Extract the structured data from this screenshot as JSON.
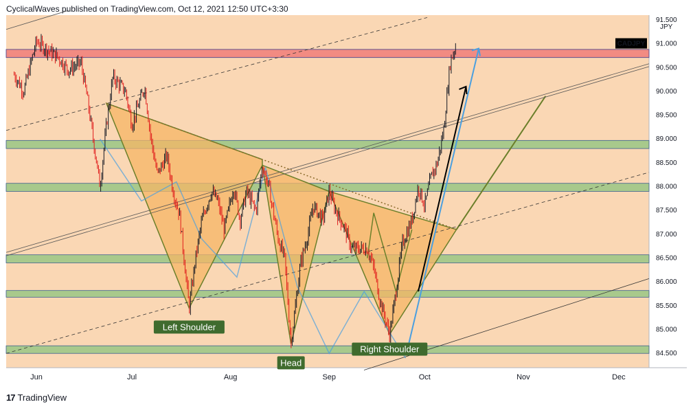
{
  "header": {
    "attribution": "CyclicalWaves published on TradingView.com, Oct 12, 2021 12:50 UTC+3:30"
  },
  "footer": {
    "brand": "TradingView",
    "logo": "17"
  },
  "colors": {
    "background": "#fad7b4",
    "price_up": "#131722",
    "price_down": "#e01b1b",
    "resistance_zone": "#f28b82",
    "support_zone": "#a8c98c",
    "pattern_fill": "#f5b565",
    "pattern_line": "#6b7f2a",
    "projection_blue": "#4a9fe0",
    "symbol_badge": "#000000"
  },
  "chart_data": {
    "type": "candlestick",
    "symbol": "CADJPY",
    "currency": "JPY",
    "y_axis": {
      "labels": [
        "91.500",
        "91.000",
        "90.500",
        "90.000",
        "89.500",
        "89.000",
        "88.500",
        "88.000",
        "87.500",
        "87.000",
        "86.500",
        "86.000",
        "85.500",
        "85.000",
        "84.500"
      ],
      "ylim": [
        84.2,
        91.6
      ]
    },
    "x_axis": {
      "labels": [
        "Jun",
        "Jul",
        "Aug",
        "Sep",
        "Oct",
        "Nov",
        "Dec"
      ]
    },
    "last_price": 91.0,
    "horizontal_zones": [
      {
        "kind": "resistance",
        "from": 90.71,
        "to": 90.88
      },
      {
        "kind": "support",
        "from": 88.8,
        "to": 88.97
      },
      {
        "kind": "support",
        "from": 87.9,
        "to": 88.07
      },
      {
        "kind": "support",
        "from": 86.4,
        "to": 86.57
      },
      {
        "kind": "support",
        "from": 85.68,
        "to": 85.82
      },
      {
        "kind": "support",
        "from": 84.5,
        "to": 84.66
      }
    ],
    "price_path": [
      [
        "May 25",
        90.35
      ],
      [
        "May 28",
        90.0
      ],
      [
        "Jun 1",
        91.05
      ],
      [
        "Jun 4",
        90.9
      ],
      [
        "Jun 8",
        90.7
      ],
      [
        "Jun 11",
        90.45
      ],
      [
        "Jun 15",
        90.6
      ],
      [
        "Jun 17",
        89.85
      ],
      [
        "Jun 21",
        88.0
      ],
      [
        "Jun 23",
        89.3
      ],
      [
        "Jun 25",
        90.3
      ],
      [
        "Jun 29",
        90.0
      ],
      [
        "Jul 1",
        89.3
      ],
      [
        "Jul 5",
        90.1
      ],
      [
        "Jul 7",
        89.0
      ],
      [
        "Jul 9",
        88.25
      ],
      [
        "Jul 12",
        88.65
      ],
      [
        "Jul 14",
        87.9
      ],
      [
        "Jul 16",
        87.4
      ],
      [
        "Jul 19",
        85.45
      ],
      [
        "Jul 21",
        86.5
      ],
      [
        "Jul 23",
        87.3
      ],
      [
        "Jul 26",
        87.9
      ],
      [
        "Jul 28",
        87.7
      ],
      [
        "Jul 30",
        87.1
      ],
      [
        "Aug 2",
        88.0
      ],
      [
        "Aug 4",
        87.3
      ],
      [
        "Aug 6",
        87.9
      ],
      [
        "Aug 9",
        87.5
      ],
      [
        "Aug 11",
        88.45
      ],
      [
        "Aug 13",
        88.0
      ],
      [
        "Aug 16",
        86.9
      ],
      [
        "Aug 18",
        86.5
      ],
      [
        "Aug 20",
        84.7
      ],
      [
        "Aug 23",
        86.4
      ],
      [
        "Aug 25",
        86.9
      ],
      [
        "Aug 27",
        87.6
      ],
      [
        "Aug 30",
        87.3
      ],
      [
        "Sep 1",
        87.9
      ],
      [
        "Sep 3",
        87.5
      ],
      [
        "Sep 6",
        87.1
      ],
      [
        "Sep 8",
        86.7
      ],
      [
        "Sep 10",
        86.7
      ],
      [
        "Sep 13",
        86.7
      ],
      [
        "Sep 15",
        86.3
      ],
      [
        "Sep 17",
        85.6
      ],
      [
        "Sep 20",
        84.9
      ],
      [
        "Sep 22",
        85.8
      ],
      [
        "Sep 24",
        86.8
      ],
      [
        "Sep 27",
        87.3
      ],
      [
        "Sep 29",
        88.0
      ],
      [
        "Oct 1",
        87.6
      ],
      [
        "Oct 3",
        88.2
      ],
      [
        "Oct 5",
        88.5
      ],
      [
        "Oct 7",
        89.2
      ],
      [
        "Oct 9",
        90.6
      ],
      [
        "Oct 11",
        91.0
      ]
    ],
    "annotations": [
      {
        "text": "Left Shoulder",
        "date": "Jul 19",
        "price": 85.45
      },
      {
        "text": "Head",
        "date": "Aug 20",
        "price": 84.7
      },
      {
        "text": "Right Shoulder",
        "date": "Sep 20",
        "price": 84.9
      }
    ]
  }
}
